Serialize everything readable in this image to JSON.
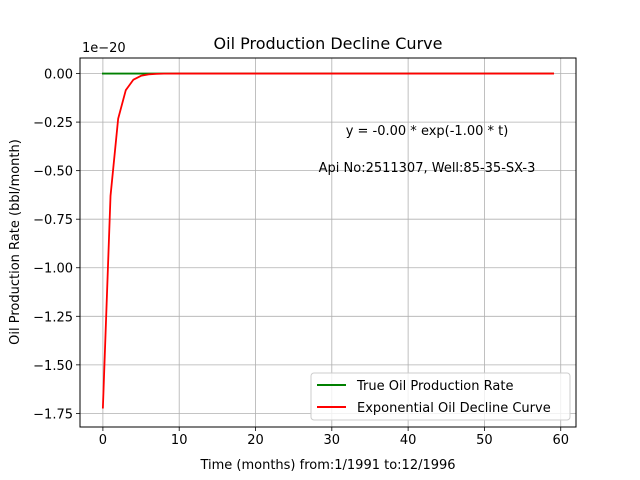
{
  "chart_data": {
    "type": "line",
    "title": "Oil Production Decline Curve",
    "xlabel": "Time (months) from:1/1991 to:12/1996",
    "ylabel": "Oil Production Rate (bbl/month)",
    "y_offset_label": "1e−20",
    "xlim": [
      -3,
      62
    ],
    "ylim": [
      -1.82,
      0.08
    ],
    "x_ticks": [
      0,
      10,
      20,
      30,
      40,
      50,
      60
    ],
    "x_tick_labels": [
      "0",
      "10",
      "20",
      "30",
      "40",
      "50",
      "60"
    ],
    "y_ticks": [
      0.0,
      -0.25,
      -0.5,
      -0.75,
      -1.0,
      -1.25,
      -1.5,
      -1.75
    ],
    "y_tick_labels": [
      "0.00",
      "−0.25",
      "−0.50",
      "−0.75",
      "−1.00",
      "−1.25",
      "−1.50",
      "−1.75"
    ],
    "grid": true,
    "legend_position": "bottom-right",
    "annotations": [
      "y = -0.00 * exp(-1.00 * t)",
      "Api No:2511307, Well:85-35-SX-3"
    ],
    "series": [
      {
        "name": "True Oil Production Rate",
        "color": "#008000",
        "x": [
          0,
          59
        ],
        "y": [
          0,
          0
        ]
      },
      {
        "name": "Exponential Oil Decline Curve",
        "color": "#ff0000",
        "x": [
          0,
          1,
          2,
          3,
          4,
          5,
          6,
          7,
          8,
          10,
          15,
          20,
          30,
          40,
          50,
          59
        ],
        "y": [
          -1.72,
          -0.63,
          -0.233,
          -0.0857,
          -0.0315,
          -0.0116,
          -0.00426,
          -0.00157,
          -0.00058,
          -8e-05,
          0,
          0,
          0,
          0,
          0,
          0
        ]
      }
    ]
  }
}
